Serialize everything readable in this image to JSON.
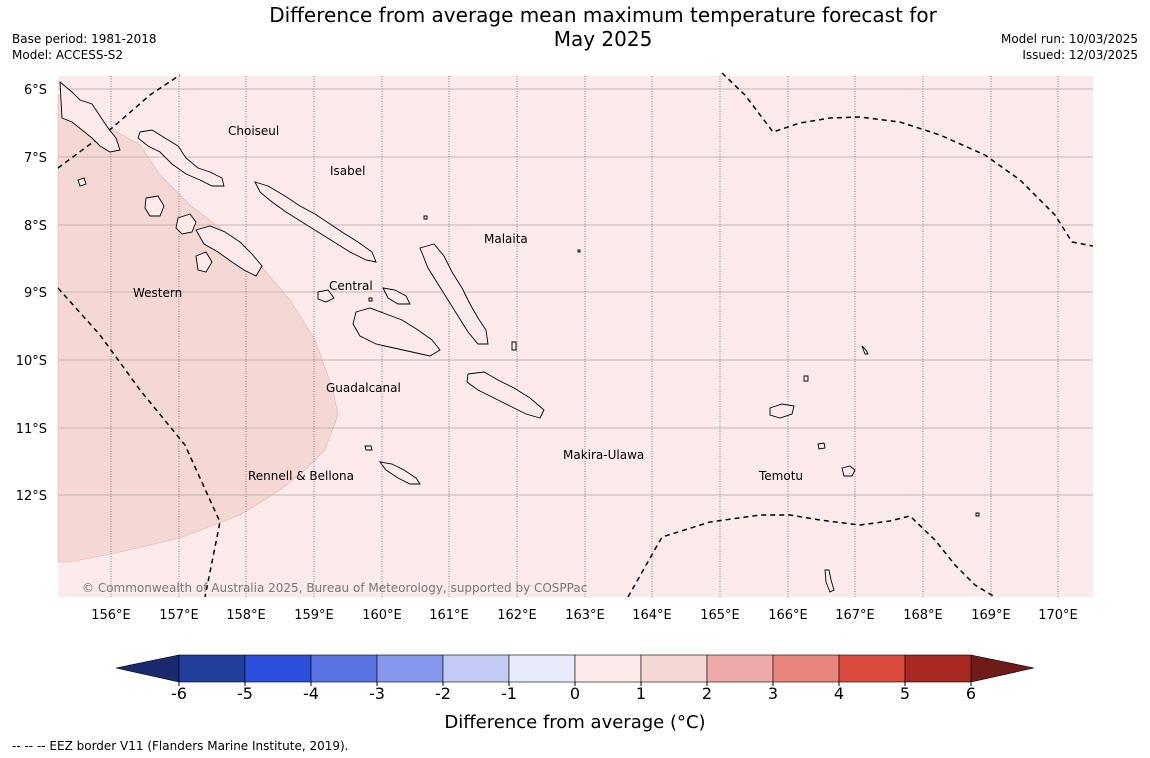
{
  "title": {
    "line1": "Difference from average mean maximum temperature forecast for",
    "line2": "May 2025"
  },
  "meta_left": {
    "base_period": "Base period: 1981-2018",
    "model": "Model: ACCESS-S2"
  },
  "meta_right": {
    "model_run": "Model run: 10/03/2025",
    "issued": "Issued: 12/03/2025"
  },
  "map": {
    "lat_labels": [
      "6°S",
      "7°S",
      "8°S",
      "9°S",
      "10°S",
      "11°S",
      "12°S"
    ],
    "lon_labels": [
      "156°E",
      "157°E",
      "158°E",
      "159°E",
      "160°E",
      "161°E",
      "162°E",
      "163°E",
      "164°E",
      "165°E",
      "166°E",
      "167°E",
      "168°E",
      "169°E",
      "170°E"
    ],
    "regions": [
      "Choiseul",
      "Isabel",
      "Malaita",
      "Western",
      "Central",
      "Guadalcanal",
      "Makira-Ulawa",
      "Temotu",
      "Rennell & Bellona"
    ],
    "credit": "© Commonwealth of Australia 2025, Bureau of Meteorology, supported by COSPPac",
    "background_color": "#fcebea",
    "anomaly_area_color": "#f5d8d5"
  },
  "colorbar": {
    "ticks": [
      "-6",
      "-5",
      "-4",
      "-3",
      "-2",
      "-1",
      "0",
      "1",
      "2",
      "3",
      "4",
      "5",
      "6"
    ],
    "colors": [
      "#233f9e",
      "#2c4fdc",
      "#5a73e3",
      "#8497ec",
      "#c3cbf4",
      "#e8ebfb",
      "#fcebea",
      "#f5d8d5",
      "#eeaaa8",
      "#e8857d",
      "#dc4a3c",
      "#a82921"
    ],
    "low_extension_color": "#1a2a6e",
    "high_extension_color": "#6f1c19",
    "title": "Difference from average (°C)"
  },
  "legend_note": "--  --  -- EEZ border V11 (Flanders Marine Institute, 2019)."
}
